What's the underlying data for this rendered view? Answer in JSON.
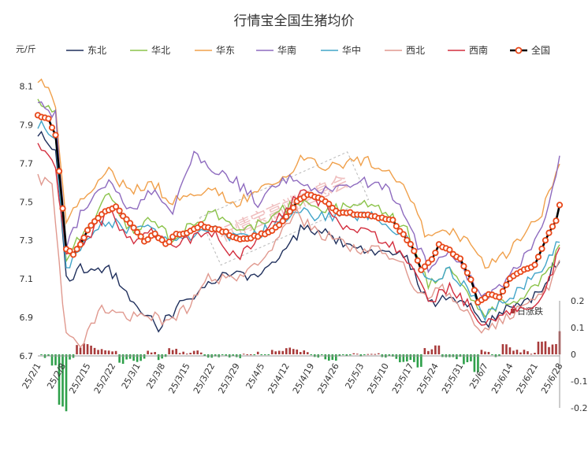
{
  "chart_data": {
    "type": "line",
    "title": "行情宝全国生猪均价",
    "ylabel": "元/斤",
    "ylim": [
      6.7,
      8.2
    ],
    "yticks": [
      6.7,
      6.9,
      7.1,
      7.3,
      7.5,
      7.7,
      7.9,
      8.1
    ],
    "y2lim": [
      -0.2,
      0.2
    ],
    "y2ticks": [
      -0.2,
      -0.1,
      0,
      0.1,
      0.2
    ],
    "grid": false,
    "legend_position": "top",
    "x_start": "2025-02-01",
    "x_labels": [
      "25/2/1",
      "25/2/8",
      "25/2/15",
      "25/2/22",
      "25/3/1",
      "25/3/8",
      "25/3/15",
      "25/3/22",
      "25/3/29",
      "25/4/5",
      "25/4/12",
      "25/4/19",
      "25/4/26",
      "25/5/3",
      "25/5/10",
      "25/5/17",
      "25/5/24",
      "25/5/31",
      "25/6/7",
      "25/6/14",
      "25/6/21",
      "25/6/28"
    ],
    "watermark": "行情宝高端信息会",
    "series": [
      {
        "name": "东北",
        "color": "#1f2f5c",
        "kp": [
          [
            0,
            7.87
          ],
          [
            5,
            7.78
          ],
          [
            8,
            7.1
          ],
          [
            12,
            7.15
          ],
          [
            20,
            7.15
          ],
          [
            28,
            6.95
          ],
          [
            34,
            6.85
          ],
          [
            42,
            7.0
          ],
          [
            50,
            7.1
          ],
          [
            56,
            7.12
          ],
          [
            62,
            7.1
          ],
          [
            68,
            7.2
          ],
          [
            74,
            7.35
          ],
          [
            80,
            7.35
          ],
          [
            86,
            7.28
          ],
          [
            92,
            7.25
          ],
          [
            98,
            7.25
          ],
          [
            104,
            7.2
          ],
          [
            110,
            6.98
          ],
          [
            116,
            7.0
          ],
          [
            122,
            6.98
          ],
          [
            126,
            6.85
          ],
          [
            130,
            6.93
          ],
          [
            136,
            6.95
          ],
          [
            142,
            7.05
          ],
          [
            147,
            7.22
          ]
        ]
      },
      {
        "name": "华北",
        "color": "#8bc34a",
        "kp": [
          [
            0,
            8.02
          ],
          [
            5,
            7.95
          ],
          [
            8,
            7.22
          ],
          [
            14,
            7.35
          ],
          [
            20,
            7.55
          ],
          [
            26,
            7.35
          ],
          [
            32,
            7.4
          ],
          [
            38,
            7.3
          ],
          [
            44,
            7.4
          ],
          [
            50,
            7.45
          ],
          [
            56,
            7.35
          ],
          [
            62,
            7.38
          ],
          [
            68,
            7.45
          ],
          [
            74,
            7.5
          ],
          [
            80,
            7.45
          ],
          [
            86,
            7.47
          ],
          [
            92,
            7.5
          ],
          [
            98,
            7.45
          ],
          [
            104,
            7.35
          ],
          [
            110,
            7.08
          ],
          [
            116,
            7.15
          ],
          [
            122,
            7.02
          ],
          [
            126,
            6.88
          ],
          [
            130,
            6.98
          ],
          [
            136,
            7.0
          ],
          [
            142,
            7.1
          ],
          [
            147,
            7.25
          ]
        ]
      },
      {
        "name": "华东",
        "color": "#f0a04b",
        "kp": [
          [
            0,
            8.1
          ],
          [
            3,
            8.12
          ],
          [
            5,
            8.0
          ],
          [
            8,
            7.4
          ],
          [
            14,
            7.55
          ],
          [
            20,
            7.65
          ],
          [
            26,
            7.55
          ],
          [
            32,
            7.6
          ],
          [
            38,
            7.5
          ],
          [
            44,
            7.55
          ],
          [
            50,
            7.55
          ],
          [
            56,
            7.5
          ],
          [
            62,
            7.55
          ],
          [
            68,
            7.6
          ],
          [
            74,
            7.72
          ],
          [
            80,
            7.68
          ],
          [
            86,
            7.7
          ],
          [
            92,
            7.72
          ],
          [
            98,
            7.68
          ],
          [
            104,
            7.55
          ],
          [
            110,
            7.3
          ],
          [
            116,
            7.35
          ],
          [
            122,
            7.28
          ],
          [
            126,
            7.15
          ],
          [
            130,
            7.2
          ],
          [
            136,
            7.3
          ],
          [
            142,
            7.45
          ],
          [
            147,
            7.7
          ]
        ]
      },
      {
        "name": "华南",
        "color": "#8e6bbf",
        "kp": [
          [
            0,
            8.0
          ],
          [
            5,
            7.95
          ],
          [
            8,
            7.28
          ],
          [
            14,
            7.5
          ],
          [
            20,
            7.62
          ],
          [
            26,
            7.45
          ],
          [
            32,
            7.55
          ],
          [
            38,
            7.45
          ],
          [
            44,
            7.75
          ],
          [
            50,
            7.65
          ],
          [
            56,
            7.6
          ],
          [
            62,
            7.5
          ],
          [
            68,
            7.6
          ],
          [
            74,
            7.62
          ],
          [
            80,
            7.55
          ],
          [
            86,
            7.6
          ],
          [
            92,
            7.6
          ],
          [
            98,
            7.58
          ],
          [
            104,
            7.4
          ],
          [
            110,
            7.15
          ],
          [
            116,
            7.25
          ],
          [
            122,
            7.1
          ],
          [
            126,
            7.0
          ],
          [
            130,
            7.05
          ],
          [
            136,
            7.18
          ],
          [
            142,
            7.35
          ],
          [
            147,
            7.72
          ]
        ]
      },
      {
        "name": "华中",
        "color": "#42a5c9",
        "kp": [
          [
            0,
            7.91
          ],
          [
            5,
            7.82
          ],
          [
            8,
            7.15
          ],
          [
            14,
            7.32
          ],
          [
            20,
            7.4
          ],
          [
            26,
            7.35
          ],
          [
            32,
            7.35
          ],
          [
            38,
            7.28
          ],
          [
            44,
            7.32
          ],
          [
            50,
            7.35
          ],
          [
            56,
            7.3
          ],
          [
            62,
            7.33
          ],
          [
            68,
            7.4
          ],
          [
            74,
            7.45
          ],
          [
            80,
            7.42
          ],
          [
            86,
            7.42
          ],
          [
            92,
            7.43
          ],
          [
            98,
            7.4
          ],
          [
            104,
            7.3
          ],
          [
            110,
            7.08
          ],
          [
            116,
            7.15
          ],
          [
            122,
            7.02
          ],
          [
            126,
            6.9
          ],
          [
            130,
            6.98
          ],
          [
            136,
            7.05
          ],
          [
            142,
            7.15
          ],
          [
            147,
            7.3
          ]
        ]
      },
      {
        "name": "西北",
        "color": "#e0998f",
        "kp": [
          [
            0,
            7.62
          ],
          [
            4,
            7.58
          ],
          [
            8,
            6.8
          ],
          [
            12,
            6.75
          ],
          [
            18,
            6.95
          ],
          [
            24,
            6.9
          ],
          [
            30,
            6.92
          ],
          [
            36,
            6.88
          ],
          [
            42,
            6.95
          ],
          [
            48,
            7.1
          ],
          [
            54,
            7.1
          ],
          [
            60,
            7.15
          ],
          [
            66,
            7.25
          ],
          [
            72,
            7.45
          ],
          [
            78,
            7.35
          ],
          [
            84,
            7.3
          ],
          [
            90,
            7.25
          ],
          [
            96,
            7.25
          ],
          [
            102,
            7.2
          ],
          [
            108,
            7.0
          ],
          [
            114,
            7.05
          ],
          [
            120,
            6.95
          ],
          [
            126,
            6.82
          ],
          [
            130,
            6.88
          ],
          [
            136,
            6.95
          ],
          [
            142,
            7.0
          ],
          [
            147,
            7.18
          ]
        ]
      },
      {
        "name": "西南",
        "color": "#d32f3f",
        "kp": [
          [
            0,
            7.78
          ],
          [
            5,
            7.7
          ],
          [
            8,
            7.2
          ],
          [
            14,
            7.32
          ],
          [
            20,
            7.45
          ],
          [
            26,
            7.3
          ],
          [
            32,
            7.35
          ],
          [
            38,
            7.28
          ],
          [
            44,
            7.32
          ],
          [
            50,
            7.32
          ],
          [
            56,
            7.2
          ],
          [
            62,
            7.3
          ],
          [
            68,
            7.42
          ],
          [
            74,
            7.55
          ],
          [
            80,
            7.5
          ],
          [
            86,
            7.35
          ],
          [
            92,
            7.35
          ],
          [
            98,
            7.3
          ],
          [
            104,
            7.2
          ],
          [
            110,
            6.98
          ],
          [
            116,
            7.05
          ],
          [
            122,
            6.95
          ],
          [
            126,
            6.85
          ],
          [
            130,
            6.92
          ],
          [
            136,
            6.95
          ],
          [
            142,
            6.98
          ],
          [
            147,
            7.25
          ]
        ]
      },
      {
        "name": "全国",
        "color": "#000000",
        "kp": [
          [
            0,
            7.95
          ],
          [
            3,
            7.93
          ],
          [
            5,
            7.85
          ],
          [
            7,
            7.47
          ],
          [
            8,
            7.26
          ],
          [
            10,
            7.22
          ],
          [
            12,
            7.28
          ],
          [
            15,
            7.38
          ],
          [
            19,
            7.45
          ],
          [
            22,
            7.48
          ],
          [
            24,
            7.42
          ],
          [
            27,
            7.37
          ],
          [
            30,
            7.3
          ],
          [
            33,
            7.33
          ],
          [
            36,
            7.28
          ],
          [
            39,
            7.33
          ],
          [
            42,
            7.34
          ],
          [
            46,
            7.38
          ],
          [
            49,
            7.36
          ],
          [
            53,
            7.34
          ],
          [
            57,
            7.3
          ],
          [
            61,
            7.32
          ],
          [
            65,
            7.34
          ],
          [
            69,
            7.4
          ],
          [
            73,
            7.5
          ],
          [
            76,
            7.54
          ],
          [
            80,
            7.52
          ],
          [
            84,
            7.45
          ],
          [
            88,
            7.44
          ],
          [
            92,
            7.43
          ],
          [
            96,
            7.42
          ],
          [
            100,
            7.4
          ],
          [
            103,
            7.33
          ],
          [
            106,
            7.25
          ],
          [
            108,
            7.15
          ],
          [
            111,
            7.2
          ],
          [
            113,
            7.28
          ],
          [
            116,
            7.25
          ],
          [
            119,
            7.2
          ],
          [
            122,
            7.1
          ],
          [
            124,
            6.98
          ],
          [
            127,
            7.02
          ],
          [
            130,
            7.0
          ],
          [
            133,
            7.1
          ],
          [
            137,
            7.15
          ],
          [
            140,
            7.17
          ],
          [
            143,
            7.3
          ],
          [
            146,
            7.4
          ],
          [
            147,
            7.48
          ]
        ]
      }
    ],
    "daily_change": {
      "name": "日涨跌",
      "up_color": "#a83a3a",
      "down_color": "#2ea04a"
    }
  }
}
